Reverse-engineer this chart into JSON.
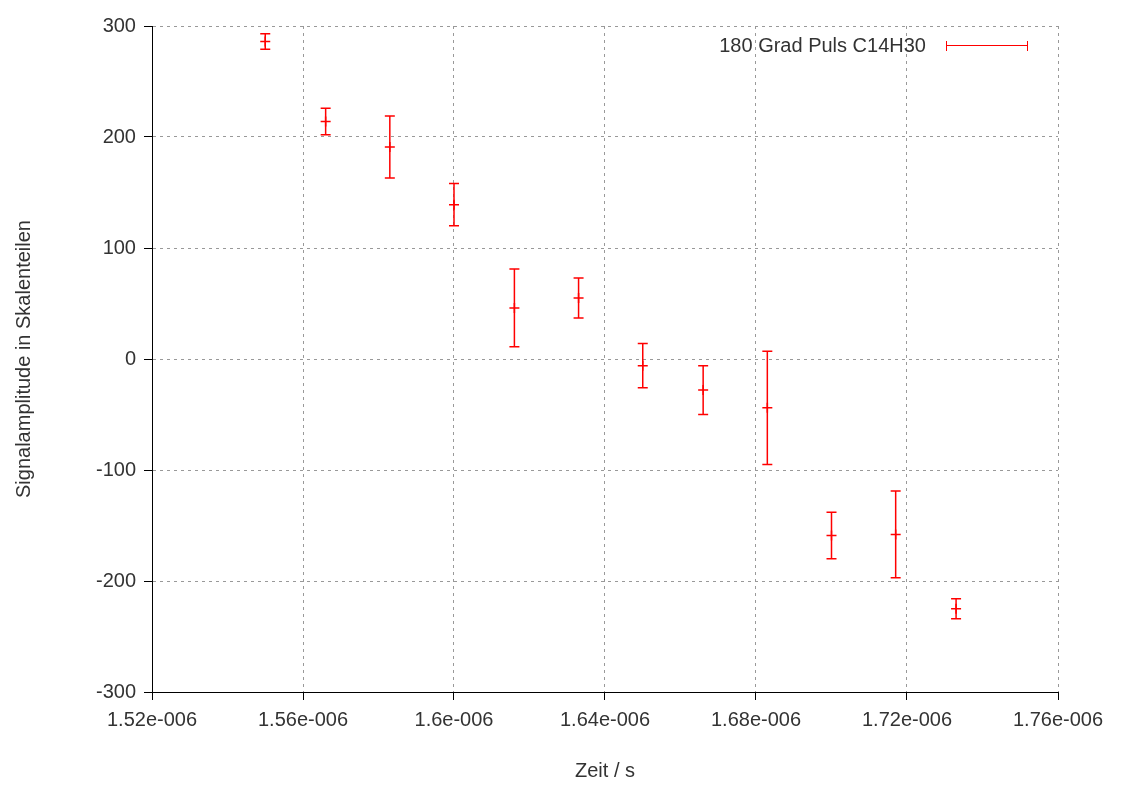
{
  "chart_data": {
    "type": "scatter",
    "xlabel": "Zeit / s",
    "ylabel": "Signalamplitude in Skalenteilen",
    "xlim": [
      1.52e-06,
      1.76e-06
    ],
    "xticks": [
      {
        "value": 1.52e-06,
        "label": "1.52e-006"
      },
      {
        "value": 1.56e-06,
        "label": "1.56e-006"
      },
      {
        "value": 1.6e-06,
        "label": "1.6e-006"
      },
      {
        "value": 1.64e-06,
        "label": "1.64e-006"
      },
      {
        "value": 1.68e-06,
        "label": "1.68e-006"
      },
      {
        "value": 1.72e-06,
        "label": "1.72e-006"
      },
      {
        "value": 1.76e-06,
        "label": "1.76e-006"
      }
    ],
    "ylim": [
      -300,
      300
    ],
    "yticks": [
      -300,
      -200,
      -100,
      0,
      100,
      200,
      300
    ],
    "grid": true,
    "legend": "top right",
    "marker": "cross",
    "series": [
      {
        "name": "180 Grad Puls C14H30",
        "color": "#ff0000",
        "x": [
          1.55e-06,
          1.566e-06,
          1.583e-06,
          1.6e-06,
          1.616e-06,
          1.633e-06,
          1.65e-06,
          1.666e-06,
          1.683e-06,
          1.7e-06,
          1.717e-06,
          1.733e-06
        ],
        "values": [
          286,
          214,
          191,
          139,
          46,
          55,
          -6,
          -28,
          -44,
          -159,
          -158,
          -225
        ],
        "errors": [
          7,
          12,
          28,
          19,
          35,
          18,
          20,
          22,
          51,
          21,
          39,
          9
        ]
      }
    ]
  }
}
